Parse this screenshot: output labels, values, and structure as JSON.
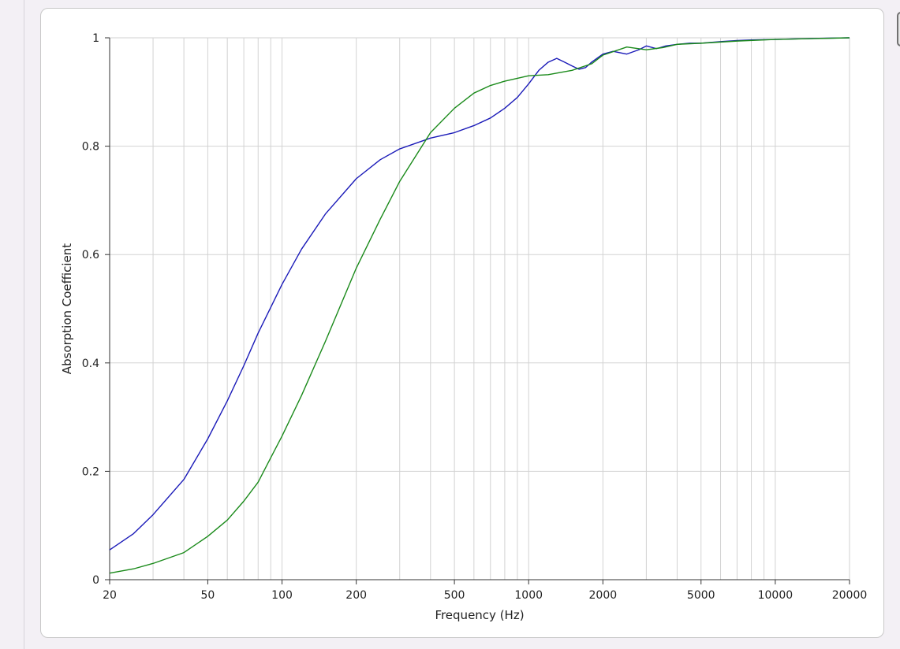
{
  "chart_data": {
    "type": "line",
    "title": "",
    "xlabel": "Frequency (Hz)",
    "ylabel": "Absorption Coefficient",
    "xscale": "log",
    "xlim": [
      20,
      20000
    ],
    "ylim": [
      0,
      1
    ],
    "grid": true,
    "legend": "none",
    "x_ticks": [
      20,
      50,
      100,
      200,
      500,
      1000,
      2000,
      5000,
      10000,
      20000
    ],
    "x_tick_labels": [
      "20",
      "50",
      "100",
      "200",
      "500",
      "1000",
      "2000",
      "5000",
      "10000",
      "20000"
    ],
    "y_ticks": [
      0,
      0.2,
      0.4,
      0.6,
      0.8,
      1
    ],
    "y_tick_labels": [
      "0",
      "0.2",
      "0.4",
      "0.6",
      "0.8",
      "1"
    ],
    "series": [
      {
        "color": "#1a1ab8",
        "x": [
          20,
          25,
          30,
          40,
          50,
          60,
          70,
          80,
          100,
          120,
          150,
          200,
          250,
          300,
          400,
          500,
          600,
          700,
          800,
          900,
          1000,
          1100,
          1200,
          1300,
          1400,
          1500,
          1600,
          1700,
          1800,
          2000,
          2200,
          2500,
          2800,
          3000,
          3300,
          3600,
          4000,
          4500,
          5000,
          6000,
          7000,
          8000,
          10000,
          12000,
          15000,
          20000
        ],
        "y": [
          0.055,
          0.085,
          0.12,
          0.185,
          0.26,
          0.33,
          0.395,
          0.455,
          0.545,
          0.61,
          0.675,
          0.74,
          0.775,
          0.795,
          0.815,
          0.825,
          0.838,
          0.852,
          0.87,
          0.89,
          0.915,
          0.94,
          0.955,
          0.962,
          0.955,
          0.948,
          0.942,
          0.945,
          0.955,
          0.97,
          0.975,
          0.97,
          0.978,
          0.985,
          0.98,
          0.985,
          0.988,
          0.99,
          0.99,
          0.993,
          0.995,
          0.996,
          0.997,
          0.998,
          0.999,
          1.0
        ]
      },
      {
        "color": "#1a8a1a",
        "x": [
          20,
          25,
          30,
          40,
          50,
          60,
          70,
          80,
          90,
          100,
          120,
          150,
          200,
          250,
          300,
          400,
          500,
          600,
          700,
          800,
          1000,
          1200,
          1500,
          1800,
          2000,
          2500,
          3000,
          3500,
          4000,
          5000,
          7000,
          10000,
          20000
        ],
        "y": [
          0.012,
          0.02,
          0.03,
          0.05,
          0.08,
          0.11,
          0.145,
          0.18,
          0.225,
          0.265,
          0.34,
          0.44,
          0.575,
          0.665,
          0.735,
          0.825,
          0.87,
          0.898,
          0.912,
          0.92,
          0.93,
          0.932,
          0.94,
          0.952,
          0.968,
          0.983,
          0.978,
          0.982,
          0.988,
          0.99,
          0.994,
          0.997,
          1.0
        ]
      }
    ]
  }
}
